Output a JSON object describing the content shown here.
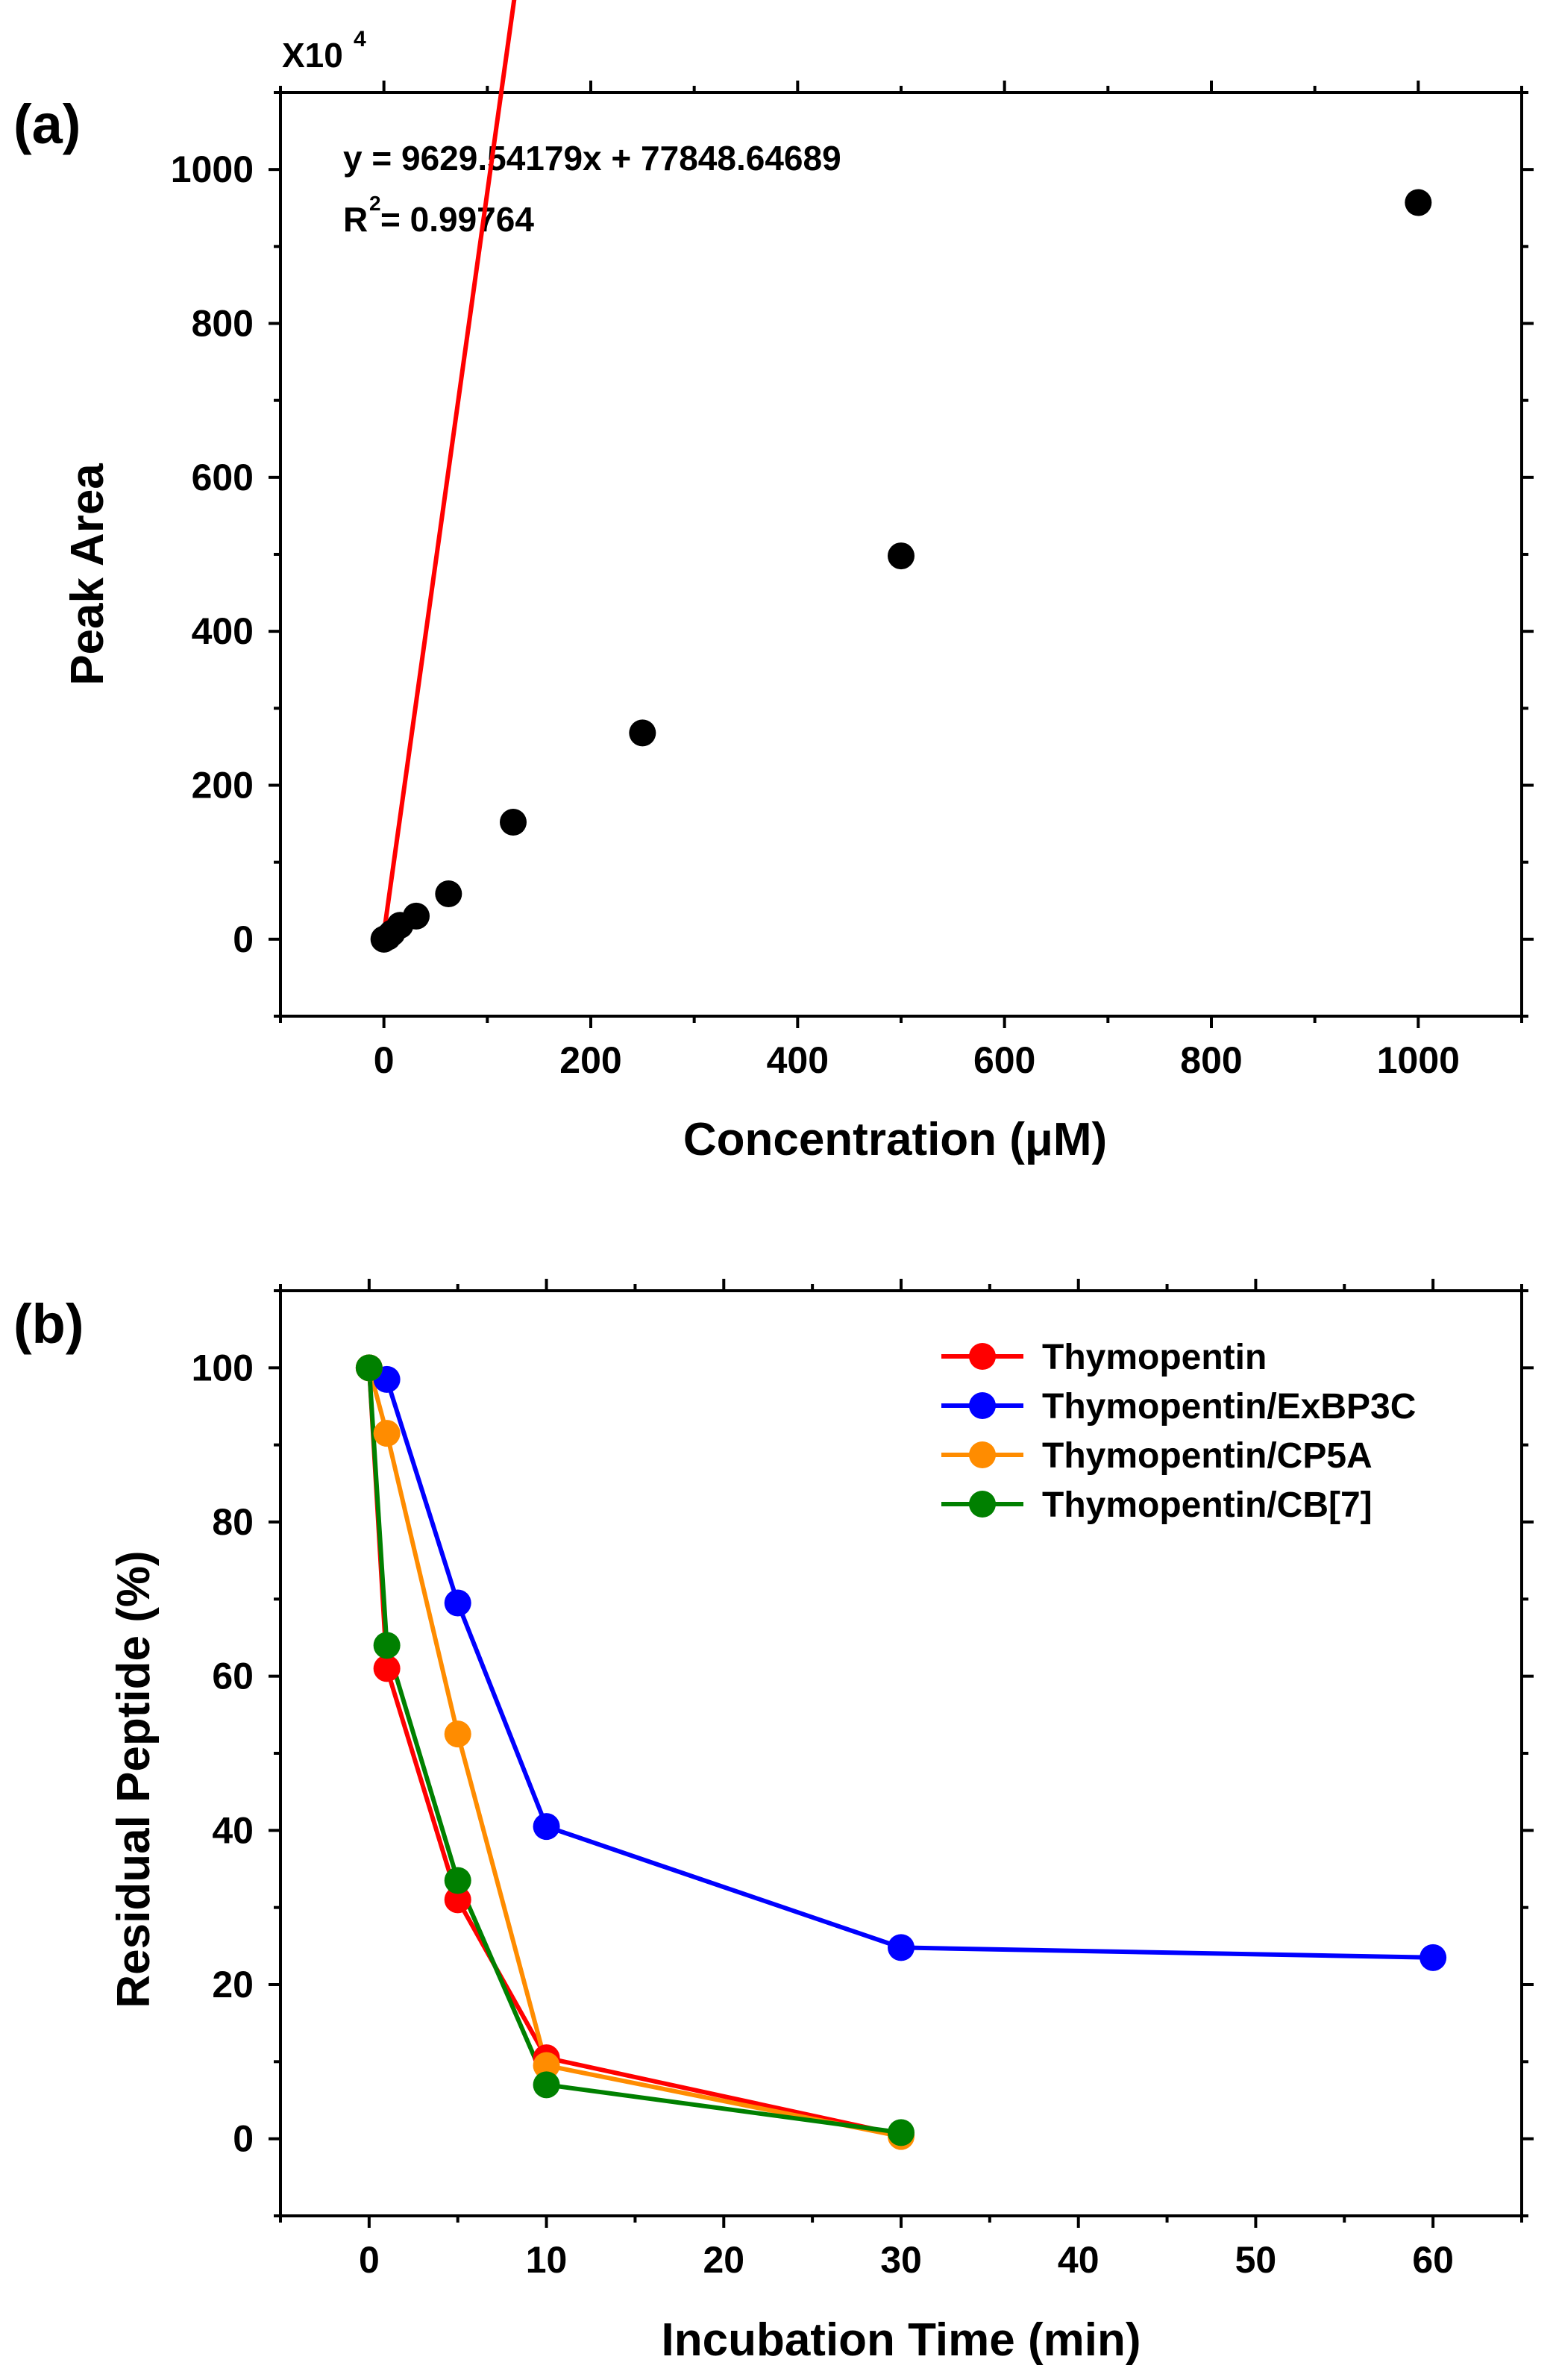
{
  "chart_data": [
    {
      "panel_label": "(a)",
      "type": "scatter",
      "xlabel": "Concentration (μM)",
      "ylabel": "Peak Area",
      "y_multiplier": "X10",
      "y_multiplier_exp": "4",
      "xlim": [
        -100,
        1100
      ],
      "ylim": [
        -100,
        1100
      ],
      "xticks": [
        0,
        200,
        400,
        600,
        800,
        1000
      ],
      "yticks": [
        0,
        200,
        400,
        600,
        800,
        1000
      ],
      "x": [
        0,
        3.9,
        7.8,
        15.6,
        31.25,
        62.5,
        125,
        250,
        500,
        1000
      ],
      "y": [
        0,
        3,
        8,
        18,
        30,
        59,
        152,
        268,
        498,
        957
      ],
      "fit": {
        "slope": 9.62954179,
        "intercept": 7.784864689,
        "equation": "y = 9629.54179x + 77848.64689",
        "r2_label": "R",
        "r2_sup": "2",
        "r2_value": " = 0.99764",
        "color": "#ff0000"
      },
      "marker_color": "#000000",
      "grid": false
    },
    {
      "panel_label": "(b)",
      "type": "line",
      "xlabel": "Incubation Time (min)",
      "ylabel": "Residual Peptide (%)",
      "xlim": [
        -5,
        65
      ],
      "ylim": [
        -10,
        110
      ],
      "xticks": [
        0,
        10,
        20,
        30,
        40,
        50,
        60
      ],
      "yticks": [
        0,
        20,
        40,
        60,
        80,
        100
      ],
      "legend_position": "top-right",
      "grid": false,
      "series": [
        {
          "name": "Thymopentin",
          "color": "#ff0000",
          "x": [
            0,
            1,
            5,
            10,
            30
          ],
          "y": [
            100,
            61,
            31,
            10.5,
            0.5
          ]
        },
        {
          "name": "Thymopentin/ExBP3C",
          "color": "#0000ff",
          "x": [
            1,
            5,
            10,
            30,
            60
          ],
          "y": [
            98.5,
            69.5,
            40.5,
            24.8,
            23.5
          ]
        },
        {
          "name": "Thymopentin/CP5A",
          "color": "#ff8c00",
          "x": [
            0,
            1,
            5,
            10,
            30
          ],
          "y": [
            100,
            91.5,
            52.5,
            9.5,
            0.3
          ]
        },
        {
          "name": "Thymopentin/CB[7]",
          "color": "#008000",
          "x": [
            0,
            1,
            5,
            10,
            30
          ],
          "y": [
            100,
            64,
            33.5,
            7,
            0.8
          ]
        }
      ]
    }
  ]
}
